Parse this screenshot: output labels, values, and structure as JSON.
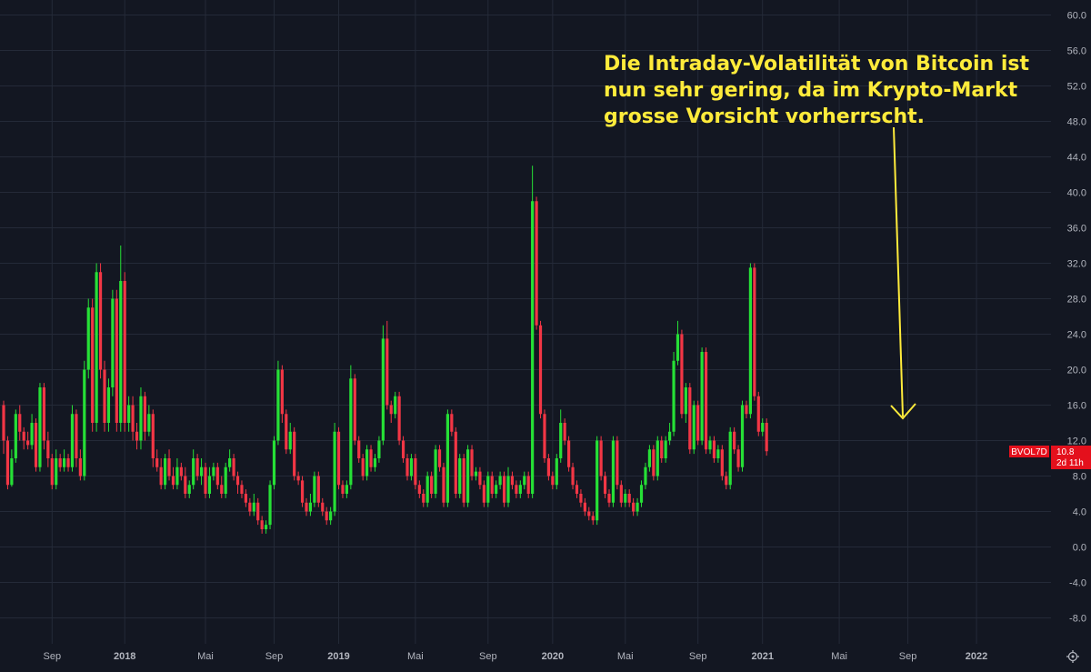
{
  "chart_data": {
    "type": "candlestick",
    "symbol": "BVOL7D",
    "last_value": "10.8",
    "countdown": "2d 11h",
    "colors": {
      "background": "#131722",
      "grid": "#242a38",
      "up": "#26e036",
      "down": "#f23645",
      "annotation": "#ffeb3b",
      "axis_text": "#b2b5be",
      "badge": "#e4101c"
    },
    "ylim": [
      -10,
      62
    ],
    "y_ticks": [
      "60.0",
      "56.0",
      "52.0",
      "48.0",
      "44.0",
      "40.0",
      "36.0",
      "32.0",
      "28.0",
      "24.0",
      "20.0",
      "16.0",
      "12.0",
      "8.0",
      "4.0",
      "0.0",
      "-4.0",
      "-8.0"
    ],
    "x_ticks": [
      {
        "label": "Sep",
        "bold": false,
        "week": -15
      },
      {
        "label": "2018",
        "bold": true,
        "week": 3
      },
      {
        "label": "Mai",
        "bold": false,
        "week": 23
      },
      {
        "label": "Sep",
        "bold": false,
        "week": 40
      },
      {
        "label": "2019",
        "bold": true,
        "week": 56
      },
      {
        "label": "Mai",
        "bold": false,
        "week": 75
      },
      {
        "label": "Sep",
        "bold": false,
        "week": 93
      },
      {
        "label": "2020",
        "bold": true,
        "week": 109
      },
      {
        "label": "Mai",
        "bold": false,
        "week": 127
      },
      {
        "label": "Sep",
        "bold": false,
        "week": 145
      },
      {
        "label": "2021",
        "bold": true,
        "week": 161
      },
      {
        "label": "Mai",
        "bold": false,
        "week": 180
      },
      {
        "label": "Sep",
        "bold": false,
        "week": 197
      },
      {
        "label": "2022",
        "bold": true,
        "week": 214
      }
    ],
    "week_start": -27,
    "candles": [
      [
        16,
        12,
        16.5,
        10.5
      ],
      [
        12,
        7,
        12.5,
        6.5
      ],
      [
        7,
        10,
        11,
        6.8
      ],
      [
        10,
        15,
        15.5,
        9.5
      ],
      [
        15,
        13,
        16,
        12
      ],
      [
        13,
        12,
        13.5,
        11
      ],
      [
        12,
        11.5,
        13,
        11
      ],
      [
        11.5,
        14,
        15,
        11
      ],
      [
        14,
        9,
        14.5,
        8.5
      ],
      [
        9,
        18,
        18.5,
        8.5
      ],
      [
        18,
        12,
        18.5,
        11
      ],
      [
        12,
        10,
        13,
        9
      ],
      [
        10,
        7,
        10.5,
        6.5
      ],
      [
        7,
        10,
        11,
        6.5
      ],
      [
        10,
        9,
        10.5,
        8.5
      ],
      [
        9,
        10,
        11,
        8.5
      ],
      [
        10,
        9,
        10.5,
        8.5
      ],
      [
        9,
        15,
        16,
        8.5
      ],
      [
        15,
        10,
        15.5,
        9
      ],
      [
        10,
        8,
        11,
        7.5
      ],
      [
        8,
        20,
        21,
        7.5
      ],
      [
        20,
        27,
        28,
        19
      ],
      [
        27,
        14,
        28,
        13
      ],
      [
        14,
        31,
        32,
        13
      ],
      [
        31,
        20,
        32,
        19
      ],
      [
        20,
        14,
        21,
        13
      ],
      [
        14,
        18,
        19,
        13
      ],
      [
        18,
        28,
        29,
        17
      ],
      [
        28,
        14,
        29,
        13
      ],
      [
        14,
        30,
        34,
        13
      ],
      [
        30,
        14,
        31,
        13
      ],
      [
        14,
        16,
        17,
        13
      ],
      [
        16,
        13,
        17,
        12
      ],
      [
        13,
        12,
        14,
        11
      ],
      [
        12,
        17,
        18,
        11
      ],
      [
        17,
        13,
        17.5,
        12
      ],
      [
        13,
        15,
        16,
        12.5
      ],
      [
        15,
        10,
        15.5,
        9
      ],
      [
        10,
        9,
        11,
        8.5
      ],
      [
        9,
        7,
        10,
        6.5
      ],
      [
        7,
        10,
        10.5,
        6.5
      ],
      [
        10,
        8,
        11,
        7.5
      ],
      [
        8,
        7,
        9,
        6.5
      ],
      [
        7,
        9,
        10,
        6.5
      ],
      [
        9,
        8,
        9.5,
        7.5
      ],
      [
        8,
        6,
        9,
        5.5
      ],
      [
        6,
        7,
        7.5,
        5.5
      ],
      [
        7,
        10,
        11,
        6.5
      ],
      [
        10,
        8,
        10.5,
        7.5
      ],
      [
        8,
        9,
        10,
        7
      ],
      [
        9,
        6,
        9.5,
        5.5
      ],
      [
        6,
        8,
        9,
        5.5
      ],
      [
        8,
        9,
        9.5,
        7.5
      ],
      [
        9,
        7,
        9.5,
        6.5
      ],
      [
        7,
        6,
        8,
        5.5
      ],
      [
        6,
        9,
        9.5,
        5.5
      ],
      [
        9,
        10,
        11,
        8.5
      ],
      [
        10,
        8,
        10.5,
        7.5
      ],
      [
        8,
        7,
        8.5,
        6
      ],
      [
        7,
        6,
        7.5,
        5.5
      ],
      [
        6,
        5,
        6.5,
        4.5
      ],
      [
        5,
        4,
        5.5,
        3.5
      ],
      [
        4,
        5,
        6,
        3.5
      ],
      [
        5,
        3,
        5.5,
        2.5
      ],
      [
        3,
        2,
        3.5,
        1.5
      ],
      [
        2,
        2.5,
        3,
        1.5
      ],
      [
        2.5,
        7,
        7.5,
        2
      ],
      [
        7,
        12,
        12.5,
        6.5
      ],
      [
        12,
        20,
        21,
        11.5
      ],
      [
        20,
        15,
        20.5,
        14
      ],
      [
        15,
        11,
        15.5,
        10.5
      ],
      [
        11,
        13,
        14,
        10.5
      ],
      [
        13,
        8,
        13.5,
        7.5
      ],
      [
        8,
        7.5,
        8.5,
        7
      ],
      [
        7.5,
        5,
        8,
        4.5
      ],
      [
        5,
        4,
        5.5,
        3.5
      ],
      [
        4,
        5,
        6,
        3.5
      ],
      [
        5,
        8,
        8.5,
        4.5
      ],
      [
        8,
        5,
        8.5,
        4.5
      ],
      [
        5,
        4,
        5.5,
        3.5
      ],
      [
        4,
        3,
        4.5,
        2.5
      ],
      [
        3,
        4,
        4.5,
        2.5
      ],
      [
        4,
        13,
        14,
        3.5
      ],
      [
        13,
        7,
        13.5,
        6.5
      ],
      [
        7,
        6,
        7.5,
        5.5
      ],
      [
        6,
        7,
        7.5,
        5.5
      ],
      [
        7,
        19,
        20.5,
        6.5
      ],
      [
        19,
        12,
        19.5,
        11.5
      ],
      [
        12,
        10,
        12.5,
        9.5
      ],
      [
        10,
        8,
        10.5,
        7.5
      ],
      [
        8,
        11,
        11.5,
        7.5
      ],
      [
        11,
        9,
        11.5,
        8.5
      ],
      [
        9,
        10,
        10.5,
        8.5
      ],
      [
        10,
        12,
        12.5,
        9.5
      ],
      [
        12,
        23.5,
        25,
        11.5
      ],
      [
        23.5,
        16,
        25.5,
        15.5
      ],
      [
        16,
        15,
        16.5,
        14
      ],
      [
        15,
        17,
        17.5,
        14.5
      ],
      [
        17,
        12,
        17.5,
        11.5
      ],
      [
        12,
        10,
        12.5,
        9.5
      ],
      [
        10,
        8,
        10.5,
        7.5
      ],
      [
        8,
        10,
        10.5,
        7.5
      ],
      [
        10,
        7,
        10.5,
        6.5
      ],
      [
        7,
        6,
        7.5,
        5.5
      ],
      [
        6,
        5,
        6.5,
        4.5
      ],
      [
        5,
        8,
        8.5,
        4.5
      ],
      [
        8,
        6,
        8.5,
        5.5
      ],
      [
        6,
        11,
        11.5,
        5.5
      ],
      [
        11,
        9,
        11.5,
        8.5
      ],
      [
        9,
        5,
        9.5,
        4.5
      ],
      [
        5,
        15,
        15.5,
        4.5
      ],
      [
        15,
        13,
        15.5,
        12.5
      ],
      [
        13,
        6,
        13.5,
        5.5
      ],
      [
        6,
        10,
        10.5,
        5.5
      ],
      [
        10,
        5,
        10.5,
        4.5
      ],
      [
        5,
        11,
        11.5,
        4.5
      ],
      [
        11,
        8,
        11.5,
        7.5
      ],
      [
        8,
        8.5,
        9,
        7.5
      ],
      [
        8.5,
        7,
        9,
        6.5
      ],
      [
        7,
        5,
        7.5,
        4.5
      ],
      [
        5,
        8,
        8.5,
        4.5
      ],
      [
        8,
        6,
        8.5,
        5.5
      ],
      [
        6,
        7,
        7.5,
        5.5
      ],
      [
        7,
        8,
        8.5,
        6.5
      ],
      [
        8,
        5,
        8.5,
        4.5
      ],
      [
        5,
        8,
        9,
        4.5
      ],
      [
        8,
        7,
        8.5,
        6.5
      ],
      [
        7,
        6,
        7.5,
        5.5
      ],
      [
        6,
        7,
        7.5,
        5.5
      ],
      [
        7,
        8,
        8.5,
        6.5
      ],
      [
        8,
        6,
        8.5,
        5.5
      ],
      [
        6,
        39,
        43,
        5.5
      ],
      [
        39,
        25,
        39.5,
        24.5
      ],
      [
        25,
        15,
        25.5,
        14.5
      ],
      [
        15,
        10,
        15.5,
        9.5
      ],
      [
        10,
        8,
        10.5,
        7.5
      ],
      [
        8,
        7,
        8.5,
        6.5
      ],
      [
        7,
        10,
        10.5,
        6.5
      ],
      [
        10,
        14,
        15.5,
        9.5
      ],
      [
        14,
        12,
        14.5,
        11.5
      ],
      [
        12,
        9,
        12.5,
        8.5
      ],
      [
        9,
        7,
        9.5,
        6.5
      ],
      [
        7,
        6,
        7.5,
        5.5
      ],
      [
        6,
        5,
        6.5,
        4.5
      ],
      [
        5,
        4,
        5.5,
        3.5
      ],
      [
        4,
        3.5,
        4.5,
        3
      ],
      [
        3.5,
        3,
        4,
        2.5
      ],
      [
        3,
        12,
        12.5,
        2.5
      ],
      [
        12,
        8,
        12.5,
        7.5
      ],
      [
        8,
        6,
        8.5,
        5.5
      ],
      [
        6,
        5,
        6.5,
        4.5
      ],
      [
        5,
        12,
        12.5,
        4.5
      ],
      [
        12,
        7,
        12.5,
        6.5
      ],
      [
        7,
        5,
        7.5,
        4.5
      ],
      [
        5,
        6,
        6.5,
        4.5
      ],
      [
        6,
        5,
        6.5,
        4.5
      ],
      [
        5,
        4,
        5.5,
        3.5
      ],
      [
        4,
        5,
        5.5,
        3.5
      ],
      [
        5,
        7,
        7.5,
        4.5
      ],
      [
        7,
        9,
        9.5,
        6.5
      ],
      [
        9,
        11,
        11.5,
        8.5
      ],
      [
        11,
        8,
        11.5,
        7.5
      ],
      [
        8,
        12,
        12.5,
        7.5
      ],
      [
        12,
        10,
        12.5,
        9.5
      ],
      [
        10,
        12,
        12.5,
        9.5
      ],
      [
        12,
        13,
        14,
        11.5
      ],
      [
        13,
        21,
        22,
        12.5
      ],
      [
        21,
        24,
        25.5,
        20.5
      ],
      [
        24,
        15,
        24.5,
        14.5
      ],
      [
        15,
        18,
        18.5,
        14
      ],
      [
        18,
        11,
        18.5,
        10.5
      ],
      [
        11,
        16,
        16.5,
        10.5
      ],
      [
        16,
        12,
        16.5,
        11.5
      ],
      [
        12,
        22,
        22.5,
        11.5
      ],
      [
        22,
        11,
        22.5,
        10.5
      ],
      [
        11,
        12,
        12.5,
        10.5
      ],
      [
        12,
        10,
        12.5,
        9.5
      ],
      [
        10,
        11,
        11.5,
        9.5
      ],
      [
        11,
        8,
        11.5,
        7.5
      ],
      [
        8,
        7,
        8.5,
        6.5
      ],
      [
        7,
        13,
        13.5,
        6.5
      ],
      [
        13,
        11,
        13.5,
        10.5
      ],
      [
        11,
        9,
        11.5,
        8.5
      ],
      [
        9,
        16,
        16.5,
        8.5
      ],
      [
        16,
        15,
        16.5,
        14.5
      ],
      [
        15,
        31.5,
        32,
        14.5
      ],
      [
        31.5,
        17,
        32,
        16.5
      ],
      [
        17,
        13,
        17.5,
        12.5
      ],
      [
        13,
        14,
        14.5,
        12.5
      ],
      [
        14,
        10.8,
        14.5,
        10.3
      ]
    ]
  },
  "annotation": {
    "lines": [
      "Die Intraday-Volatilität von Bitcoin ist",
      "nun sehr gering, da im Krypto-Markt",
      "grosse Vorsicht vorherrscht."
    ]
  },
  "icons": {
    "settings": "gear-icon"
  }
}
